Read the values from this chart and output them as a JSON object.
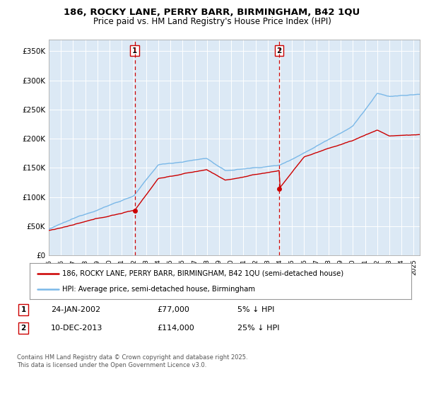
{
  "title_line1": "186, ROCKY LANE, PERRY BARR, BIRMINGHAM, B42 1QU",
  "title_line2": "Price paid vs. HM Land Registry's House Price Index (HPI)",
  "bg_color": "#dce9f5",
  "hpi_color": "#7ab8e8",
  "price_color": "#cc0000",
  "vline_color": "#cc0000",
  "ylim": [
    0,
    370000
  ],
  "yticks": [
    0,
    50000,
    100000,
    150000,
    200000,
    250000,
    300000,
    350000
  ],
  "ytick_labels": [
    "£0",
    "£50K",
    "£100K",
    "£150K",
    "£200K",
    "£250K",
    "£300K",
    "£350K"
  ],
  "sale1_year": 2002.07,
  "sale1_price": 77000,
  "sale2_year": 2013.94,
  "sale2_price": 114000,
  "legend_line1": "186, ROCKY LANE, PERRY BARR, BIRMINGHAM, B42 1QU (semi-detached house)",
  "legend_line2": "HPI: Average price, semi-detached house, Birmingham",
  "footnote": "Contains HM Land Registry data © Crown copyright and database right 2025.\nThis data is licensed under the Open Government Licence v3.0.",
  "xmin": 1995,
  "xmax": 2025.5
}
